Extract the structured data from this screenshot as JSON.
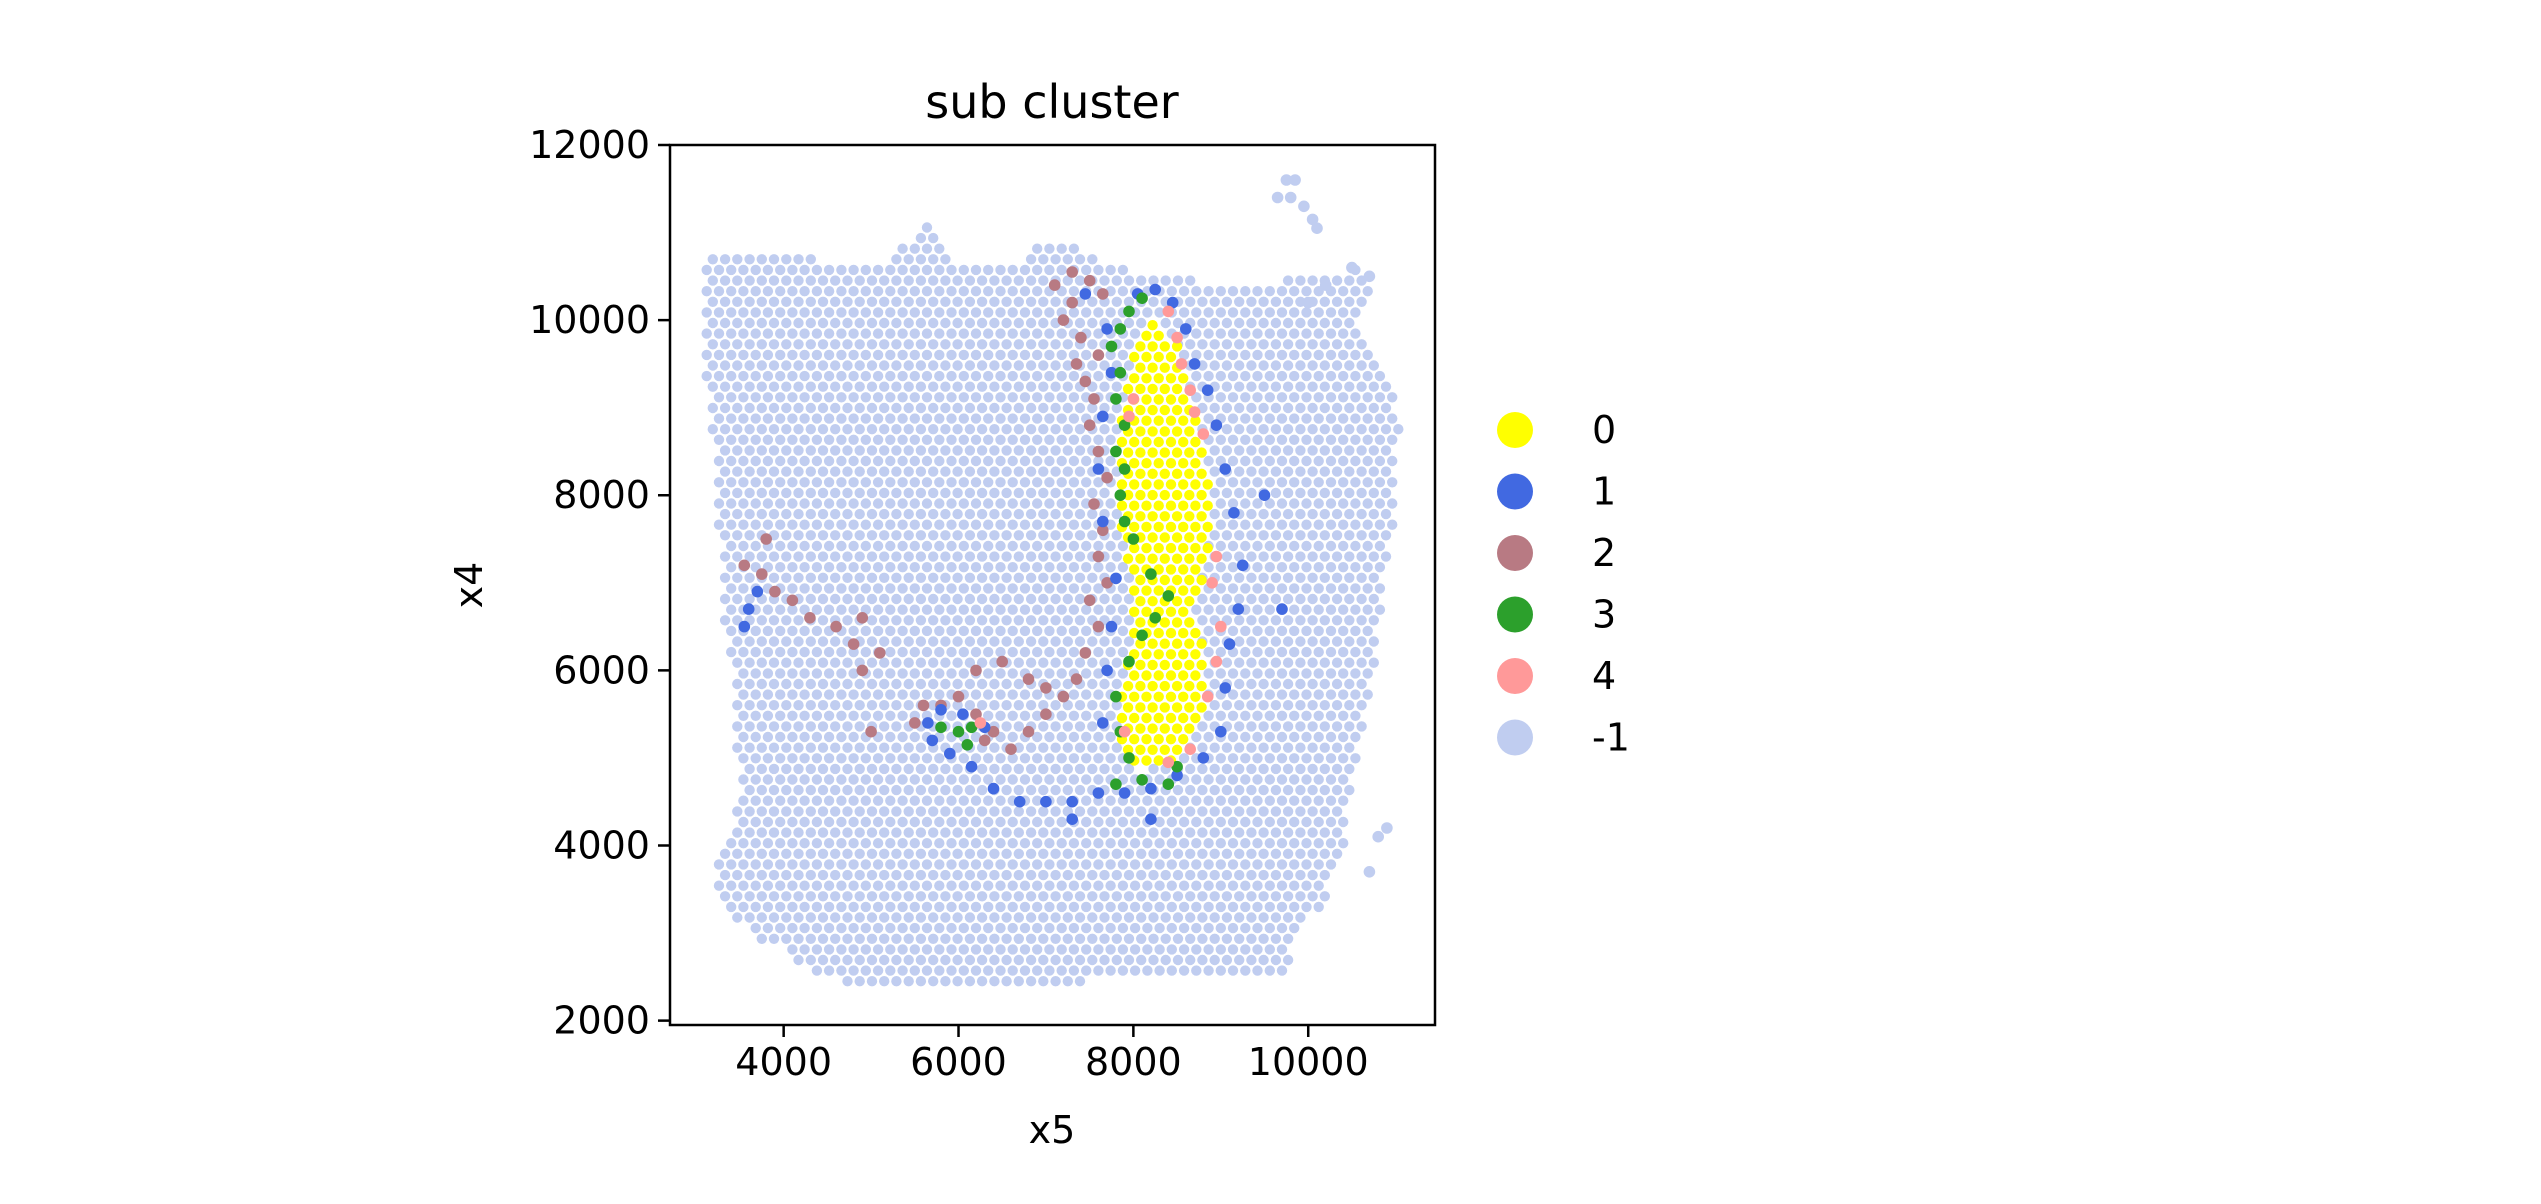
{
  "chart_data": {
    "type": "scatter",
    "title": "sub cluster",
    "xlabel": "x5",
    "ylabel": "x4",
    "xlim": [
      2700,
      11450
    ],
    "ylim": [
      1950,
      12000
    ],
    "xticks": [
      4000,
      6000,
      8000,
      10000
    ],
    "yticks": [
      2000,
      4000,
      6000,
      8000,
      10000,
      12000
    ],
    "xtick_labels": [
      "4000",
      "6000",
      "8000",
      "10000"
    ],
    "ytick_labels": [
      "2000",
      "4000",
      "6000",
      "8000",
      "10000",
      "12000"
    ],
    "grid": false,
    "legend_position": "right",
    "spot_spacing": 140,
    "series": [
      {
        "name": "0",
        "color": "#ffff00",
        "shape": "polygon",
        "vertices": [
          [
            8200,
            10150
          ],
          [
            8500,
            9700
          ],
          [
            8700,
            9000
          ],
          [
            8900,
            8000
          ],
          [
            8850,
            7300
          ],
          [
            8700,
            6700
          ],
          [
            8850,
            6000
          ],
          [
            8800,
            5400
          ],
          [
            8500,
            5000
          ],
          [
            8150,
            4850
          ],
          [
            7900,
            4950
          ],
          [
            7800,
            5500
          ],
          [
            7950,
            6200
          ],
          [
            8000,
            6600
          ],
          [
            7950,
            7200
          ],
          [
            7800,
            7900
          ],
          [
            7850,
            8700
          ],
          [
            7900,
            9200
          ],
          [
            8000,
            9700
          ]
        ],
        "points": []
      },
      {
        "name": "1",
        "color": "#4169e1",
        "shape": "scatter",
        "points": [
          [
            8050,
            10300
          ],
          [
            8250,
            10350
          ],
          [
            8450,
            10200
          ],
          [
            8600,
            9900
          ],
          [
            8700,
            9500
          ],
          [
            8850,
            9200
          ],
          [
            8950,
            8800
          ],
          [
            9050,
            8300
          ],
          [
            9150,
            7800
          ],
          [
            9250,
            7200
          ],
          [
            9200,
            6700
          ],
          [
            9100,
            6300
          ],
          [
            9050,
            5800
          ],
          [
            9000,
            5300
          ],
          [
            8800,
            5000
          ],
          [
            8500,
            4800
          ],
          [
            8200,
            4650
          ],
          [
            7900,
            4600
          ],
          [
            7600,
            4600
          ],
          [
            7300,
            4500
          ],
          [
            7000,
            4500
          ],
          [
            6700,
            4500
          ],
          [
            6400,
            4650
          ],
          [
            6150,
            4900
          ],
          [
            5900,
            5050
          ],
          [
            5700,
            5200
          ],
          [
            5650,
            5400
          ],
          [
            5800,
            5550
          ],
          [
            6050,
            5500
          ],
          [
            6300,
            5350
          ],
          [
            7650,
            5400
          ],
          [
            7700,
            6000
          ],
          [
            7750,
            6500
          ],
          [
            7800,
            7050
          ],
          [
            7650,
            7700
          ],
          [
            7600,
            8300
          ],
          [
            7650,
            8900
          ],
          [
            7750,
            9400
          ],
          [
            7700,
            9900
          ],
          [
            7450,
            10300
          ],
          [
            3600,
            6700
          ],
          [
            3700,
            6900
          ],
          [
            3550,
            6500
          ],
          [
            9700,
            6700
          ],
          [
            9500,
            8000
          ],
          [
            8200,
            4300
          ],
          [
            7300,
            4300
          ]
        ]
      },
      {
        "name": "2",
        "color": "#b87a83",
        "shape": "scatter",
        "points": [
          [
            7100,
            10400
          ],
          [
            7300,
            10550
          ],
          [
            7500,
            10450
          ],
          [
            7650,
            10300
          ],
          [
            7300,
            10200
          ],
          [
            7200,
            10000
          ],
          [
            7400,
            9800
          ],
          [
            7600,
            9600
          ],
          [
            7350,
            9500
          ],
          [
            7450,
            9300
          ],
          [
            7550,
            9100
          ],
          [
            7500,
            8800
          ],
          [
            7600,
            8500
          ],
          [
            7700,
            8200
          ],
          [
            7550,
            7900
          ],
          [
            7650,
            7600
          ],
          [
            7600,
            7300
          ],
          [
            7700,
            7000
          ],
          [
            7500,
            6800
          ],
          [
            7600,
            6500
          ],
          [
            7450,
            6200
          ],
          [
            7350,
            5900
          ],
          [
            7200,
            5700
          ],
          [
            7000,
            5500
          ],
          [
            6800,
            5300
          ],
          [
            6600,
            5100
          ],
          [
            6400,
            5300
          ],
          [
            6200,
            5500
          ],
          [
            6000,
            5700
          ],
          [
            5800,
            5600
          ],
          [
            5600,
            5600
          ],
          [
            5500,
            5400
          ],
          [
            6200,
            6000
          ],
          [
            6500,
            6100
          ],
          [
            6800,
            5900
          ],
          [
            7000,
            5800
          ],
          [
            6300,
            5200
          ],
          [
            5000,
            5300
          ],
          [
            5100,
            6200
          ],
          [
            4900,
            6000
          ],
          [
            4800,
            6300
          ],
          [
            4600,
            6500
          ],
          [
            4300,
            6600
          ],
          [
            4100,
            6800
          ],
          [
            3900,
            6900
          ],
          [
            3750,
            7100
          ],
          [
            3550,
            7200
          ],
          [
            3800,
            7500
          ],
          [
            4900,
            6600
          ]
        ]
      },
      {
        "name": "3",
        "color": "#2ca02c",
        "shape": "scatter",
        "points": [
          [
            8100,
            10250
          ],
          [
            7950,
            10100
          ],
          [
            7850,
            9900
          ],
          [
            7750,
            9700
          ],
          [
            7850,
            9400
          ],
          [
            7800,
            9100
          ],
          [
            7900,
            8800
          ],
          [
            7800,
            8500
          ],
          [
            7900,
            8300
          ],
          [
            7850,
            8000
          ],
          [
            7900,
            7700
          ],
          [
            8000,
            7500
          ],
          [
            8200,
            7100
          ],
          [
            8400,
            6850
          ],
          [
            8250,
            6600
          ],
          [
            8100,
            6400
          ],
          [
            7950,
            6100
          ],
          [
            7800,
            5700
          ],
          [
            7850,
            5300
          ],
          [
            7950,
            5000
          ],
          [
            8100,
            4750
          ],
          [
            7800,
            4700
          ],
          [
            8400,
            4700
          ],
          [
            8500,
            4900
          ],
          [
            6150,
            5350
          ],
          [
            6000,
            5300
          ],
          [
            5800,
            5350
          ],
          [
            6100,
            5150
          ]
        ]
      },
      {
        "name": "4",
        "color": "#ff9999",
        "shape": "scatter",
        "points": [
          [
            8400,
            10100
          ],
          [
            8500,
            9800
          ],
          [
            8550,
            9500
          ],
          [
            8650,
            9200
          ],
          [
            8700,
            8950
          ],
          [
            8800,
            8700
          ],
          [
            8950,
            7300
          ],
          [
            8900,
            7000
          ],
          [
            9000,
            6500
          ],
          [
            8950,
            6100
          ],
          [
            8850,
            5700
          ],
          [
            8650,
            5100
          ],
          [
            8400,
            4950
          ],
          [
            8000,
            9100
          ],
          [
            7950,
            8900
          ],
          [
            7900,
            5300
          ],
          [
            6250,
            5400
          ]
        ]
      },
      {
        "name": "-1",
        "color": "#c0cdf0",
        "shape": "polygon",
        "vertices": [
          [
            3100,
            10750
          ],
          [
            3500,
            10750
          ],
          [
            4000,
            10800
          ],
          [
            4500,
            10650
          ],
          [
            5200,
            10650
          ],
          [
            5400,
            10900
          ],
          [
            5700,
            11200
          ],
          [
            5800,
            10900
          ],
          [
            6000,
            10650
          ],
          [
            6700,
            10650
          ],
          [
            6900,
            10900
          ],
          [
            7300,
            10900
          ],
          [
            7800,
            10600
          ],
          [
            8200,
            10500
          ],
          [
            8800,
            10450
          ],
          [
            9300,
            10400
          ],
          [
            9700,
            10450
          ],
          [
            10200,
            10550
          ],
          [
            10650,
            10600
          ],
          [
            10700,
            10300
          ],
          [
            10500,
            10000
          ],
          [
            10700,
            9700
          ],
          [
            10900,
            9300
          ],
          [
            11050,
            8900
          ],
          [
            11000,
            8200
          ],
          [
            10950,
            7500
          ],
          [
            10850,
            7000
          ],
          [
            10800,
            6300
          ],
          [
            10700,
            5800
          ],
          [
            10600,
            5200
          ],
          [
            10500,
            4600
          ],
          [
            10400,
            3900
          ],
          [
            10200,
            3400
          ],
          [
            9900,
            3000
          ],
          [
            9700,
            2500
          ],
          [
            8600,
            2500
          ],
          [
            7500,
            2450
          ],
          [
            6600,
            2450
          ],
          [
            5800,
            2450
          ],
          [
            5300,
            2450
          ],
          [
            4700,
            2450
          ],
          [
            4300,
            2550
          ],
          [
            4000,
            2800
          ],
          [
            3600,
            3000
          ],
          [
            3300,
            3350
          ],
          [
            3200,
            3700
          ],
          [
            3350,
            4100
          ],
          [
            3500,
            4500
          ],
          [
            3450,
            5200
          ],
          [
            3400,
            6000
          ],
          [
            3300,
            6800
          ],
          [
            3250,
            7600
          ],
          [
            3200,
            8500
          ],
          [
            3100,
            9300
          ],
          [
            3050,
            10000
          ]
        ],
        "points": [
          [
            9750,
            11600
          ],
          [
            9850,
            11600
          ],
          [
            9650,
            11400
          ],
          [
            9800,
            11400
          ],
          [
            9950,
            11300
          ],
          [
            10050,
            11150
          ],
          [
            10100,
            11050
          ],
          [
            10900,
            4200
          ],
          [
            10800,
            4100
          ],
          [
            10700,
            3700
          ],
          [
            10000,
            10200
          ],
          [
            10200,
            10400
          ],
          [
            10500,
            10600
          ],
          [
            10700,
            10500
          ]
        ]
      }
    ]
  }
}
